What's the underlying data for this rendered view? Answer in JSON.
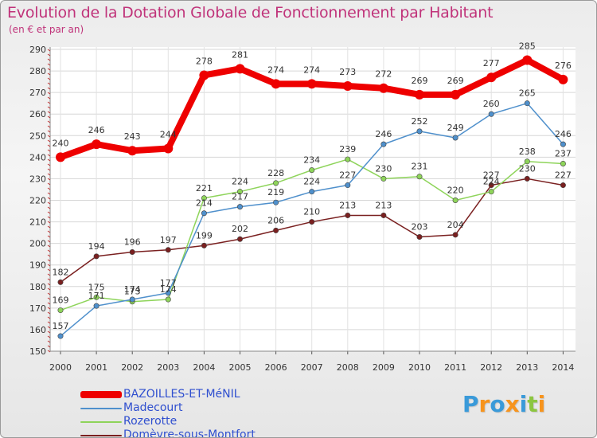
{
  "title": "Evolution de la Dotation Globale de Fonctionnement par Habitant",
  "subtitle": "(en € et par an)",
  "brand": {
    "name": "Proxiti",
    "letters": [
      "P",
      "r",
      "o",
      "x",
      "i",
      "t",
      "i"
    ],
    "colors": [
      "#3a9ad9",
      "#f7941d",
      "#3a9ad9",
      "#f7941d",
      "#3a9ad9",
      "#8cc63f",
      "#f7941d"
    ]
  },
  "chart_data": {
    "type": "line",
    "title": "Evolution de la Dotation Globale de Fonctionnement par Habitant",
    "subtitle": "(en € et par an)",
    "xlabel": "",
    "ylabel": "",
    "x": [
      "2000",
      "2001",
      "2002",
      "2003",
      "2004",
      "2005",
      "2006",
      "2007",
      "2008",
      "2009",
      "2010",
      "2011",
      "2012",
      "2013",
      "2014"
    ],
    "ylim": [
      150,
      290
    ],
    "yticks": [
      150,
      160,
      170,
      180,
      190,
      200,
      210,
      220,
      230,
      240,
      250,
      260,
      270,
      280,
      290
    ],
    "grid": true,
    "legend": "bottom-left",
    "series": [
      {
        "name": "BAZOILLES-ET-MéNIL",
        "color": "#ee0000",
        "values": [
          240,
          246,
          243,
          244,
          278,
          281,
          274,
          274,
          273,
          272,
          269,
          269,
          277,
          285,
          276
        ],
        "labels": [
          "240",
          "246",
          "243",
          "244",
          "278",
          "281",
          "274",
          "274",
          "273",
          "272",
          "269",
          "269",
          "277",
          "285",
          "276"
        ]
      },
      {
        "name": "Madecourt",
        "color": "#4f90cc",
        "values": [
          157,
          171,
          174,
          177,
          214,
          217,
          219,
          224,
          227,
          246,
          252,
          249,
          260,
          265,
          246
        ],
        "labels": [
          "157",
          "171",
          "174",
          "177",
          "214",
          "217",
          "219",
          "224",
          "227",
          "246",
          "252",
          "249",
          "260",
          "265",
          "246"
        ]
      },
      {
        "name": "Rozerotte",
        "color": "#8ed45a",
        "values": [
          169,
          175,
          173,
          174,
          221,
          224,
          228,
          234,
          239,
          230,
          231,
          220,
          224,
          238,
          237
        ],
        "labels": [
          "169",
          "175",
          "173",
          "174",
          "221",
          "224",
          "228",
          "234",
          "239",
          "230",
          "231",
          "220",
          "224",
          "238",
          "237"
        ]
      },
      {
        "name": "Domèvre-sous-Montfort",
        "color": "#7a2020",
        "values": [
          182,
          194,
          196,
          197,
          199,
          202,
          206,
          210,
          213,
          213,
          203,
          204,
          227,
          230,
          227
        ],
        "labels": [
          "182",
          "194",
          "196",
          "197",
          "199",
          "202",
          "206",
          "210",
          "213",
          "213",
          "203",
          "204",
          "227",
          "230",
          "227"
        ]
      }
    ]
  }
}
